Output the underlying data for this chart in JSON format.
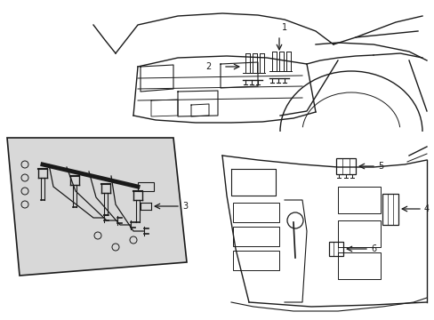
{
  "bg_color": "#ffffff",
  "line_color": "#1a1a1a",
  "inset_fill": "#e0e0e0",
  "figsize": [
    4.89,
    3.6
  ],
  "dpi": 100
}
